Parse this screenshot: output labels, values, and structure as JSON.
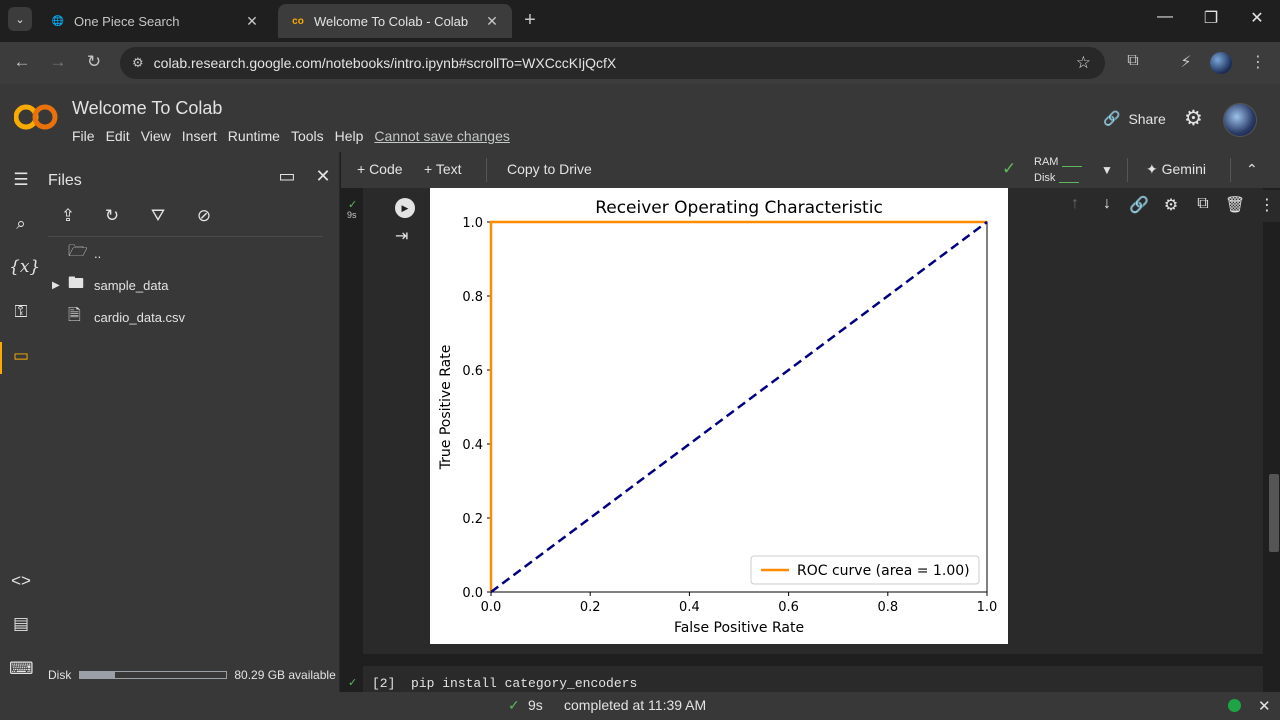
{
  "browser": {
    "tabs": [
      {
        "label": "One Piece Search",
        "active": false
      },
      {
        "label": "Welcome To Colab - Colab",
        "active": true
      }
    ],
    "url": "colab.research.google.com/notebooks/intro.ipynb#scrollTo=WXCccKIjQcfX"
  },
  "colab": {
    "title": "Welcome To Colab",
    "menu": [
      "File",
      "Edit",
      "View",
      "Insert",
      "Runtime",
      "Tools",
      "Help"
    ],
    "cannot_save": "Cannot save changes",
    "share_label": "Share"
  },
  "toolbar": {
    "code_label": "+ Code",
    "text_label": "+ Text",
    "copy_label": "Copy to Drive",
    "ram_label": "RAM",
    "disk_label": "Disk",
    "gemini_label": "Gemini"
  },
  "files_panel": {
    "title": "Files",
    "items": [
      {
        "name": "..",
        "type": "parent"
      },
      {
        "name": "sample_data",
        "type": "folder"
      },
      {
        "name": "cardio_data.csv",
        "type": "file"
      }
    ],
    "disk_label": "Disk",
    "disk_available": "80.29 GB available",
    "disk_used_fraction": 0.24
  },
  "cell": {
    "time": "9s",
    "next_cell_prompt": "[2]",
    "next_cell_code": "pip install category_encoders"
  },
  "status": {
    "duration": "9s",
    "message": "completed at 11:39 AM"
  },
  "chart_data": {
    "type": "line",
    "title": "Receiver Operating Characteristic",
    "xlabel": "False Positive Rate",
    "ylabel": "True Positive Rate",
    "xlim": [
      0,
      1
    ],
    "ylim": [
      0,
      1
    ],
    "xticks": [
      "0.0",
      "0.2",
      "0.4",
      "0.6",
      "0.8",
      "1.0"
    ],
    "yticks": [
      "0.0",
      "0.2",
      "0.4",
      "0.6",
      "0.8",
      "1.0"
    ],
    "series": [
      {
        "name": "ROC curve (area = 1.00)",
        "color": "#ff8c00",
        "style": "solid",
        "x": [
          0,
          0,
          1
        ],
        "y": [
          0,
          1,
          1
        ]
      },
      {
        "color": "#000080",
        "style": "dashed",
        "x": [
          0,
          1
        ],
        "y": [
          0,
          1
        ]
      }
    ],
    "legend": "lower-right",
    "grid": false
  }
}
